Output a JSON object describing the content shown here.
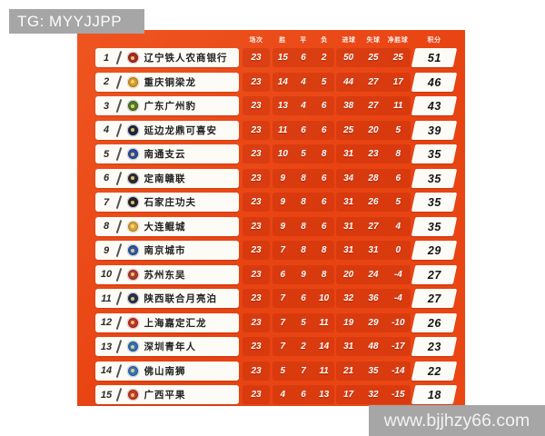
{
  "watermarks": {
    "top_left": "TG: MYYJJPP",
    "bottom_right": "www.bjjhzy66.com"
  },
  "colors": {
    "board_orange": "#e84312",
    "stat_strip": "rgba(160,25,0,0.22)",
    "plate_white": "#fdfbf6",
    "watermark_gray": "#a6a6a6"
  },
  "table": {
    "headers": [
      "场次",
      "胜",
      "平",
      "负",
      "进球",
      "失球",
      "净胜球",
      "积分"
    ],
    "rows": [
      {
        "rank": "1",
        "team": "辽宁铁人农商银行",
        "badge_color": "#a62b22",
        "played": "23",
        "win": "15",
        "draw": "6",
        "loss": "2",
        "gf": "50",
        "ga": "25",
        "gd": "25",
        "pts": "51"
      },
      {
        "rank": "2",
        "team": "重庆铜梁龙",
        "badge_color": "#d89a2b",
        "played": "23",
        "win": "14",
        "draw": "4",
        "loss": "5",
        "gf": "44",
        "ga": "27",
        "gd": "17",
        "pts": "46"
      },
      {
        "rank": "3",
        "team": "广东广州豹",
        "badge_color": "#4f7a28",
        "played": "23",
        "win": "13",
        "draw": "4",
        "loss": "6",
        "gf": "38",
        "ga": "27",
        "gd": "11",
        "pts": "43"
      },
      {
        "rank": "4",
        "team": "延边龙鼎可喜安",
        "badge_color": "#1e2742",
        "played": "23",
        "win": "11",
        "draw": "6",
        "loss": "6",
        "gf": "25",
        "ga": "20",
        "gd": "5",
        "pts": "39"
      },
      {
        "rank": "5",
        "team": "南通支云",
        "badge_color": "#2b4da0",
        "played": "23",
        "win": "10",
        "draw": "5",
        "loss": "8",
        "gf": "31",
        "ga": "23",
        "gd": "8",
        "pts": "35"
      },
      {
        "rank": "6",
        "team": "定南赣联",
        "badge_color": "#2b2b33",
        "played": "23",
        "win": "9",
        "draw": "8",
        "loss": "6",
        "gf": "34",
        "ga": "28",
        "gd": "6",
        "pts": "35"
      },
      {
        "rank": "7",
        "team": "石家庄功夫",
        "badge_color": "#23232a",
        "played": "23",
        "win": "9",
        "draw": "8",
        "loss": "6",
        "gf": "31",
        "ga": "26",
        "gd": "5",
        "pts": "35"
      },
      {
        "rank": "8",
        "team": "大连鲲城",
        "badge_color": "#d9a43c",
        "played": "23",
        "win": "9",
        "draw": "8",
        "loss": "6",
        "gf": "31",
        "ga": "27",
        "gd": "4",
        "pts": "35"
      },
      {
        "rank": "9",
        "team": "南京城市",
        "badge_color": "#2d59a6",
        "played": "23",
        "win": "7",
        "draw": "8",
        "loss": "8",
        "gf": "31",
        "ga": "31",
        "gd": "0",
        "pts": "29"
      },
      {
        "rank": "10",
        "team": "苏州东吴",
        "badge_color": "#b03a2e",
        "played": "23",
        "win": "6",
        "draw": "9",
        "loss": "8",
        "gf": "20",
        "ga": "24",
        "gd": "-4",
        "pts": "27"
      },
      {
        "rank": "11",
        "team": "陕西联合月亮泊",
        "badge_color": "#27314f",
        "played": "23",
        "win": "7",
        "draw": "6",
        "loss": "10",
        "gf": "32",
        "ga": "36",
        "gd": "-4",
        "pts": "27"
      },
      {
        "rank": "12",
        "team": "上海嘉定汇龙",
        "badge_color": "#c03028",
        "played": "23",
        "win": "7",
        "draw": "5",
        "loss": "11",
        "gf": "19",
        "ga": "29",
        "gd": "-10",
        "pts": "26"
      },
      {
        "rank": "13",
        "team": "深圳青年人",
        "badge_color": "#2f6fb5",
        "played": "23",
        "win": "7",
        "draw": "2",
        "loss": "14",
        "gf": "31",
        "ga": "48",
        "gd": "-17",
        "pts": "23"
      },
      {
        "rank": "14",
        "team": "佛山南狮",
        "badge_color": "#3a72b8",
        "played": "23",
        "win": "5",
        "draw": "7",
        "loss": "11",
        "gf": "21",
        "ga": "35",
        "gd": "-14",
        "pts": "22"
      },
      {
        "rank": "15",
        "team": "广西平果",
        "badge_color": "#c23b27",
        "played": "23",
        "win": "4",
        "draw": "6",
        "loss": "13",
        "gf": "17",
        "ga": "32",
        "gd": "-15",
        "pts": "18"
      }
    ]
  }
}
